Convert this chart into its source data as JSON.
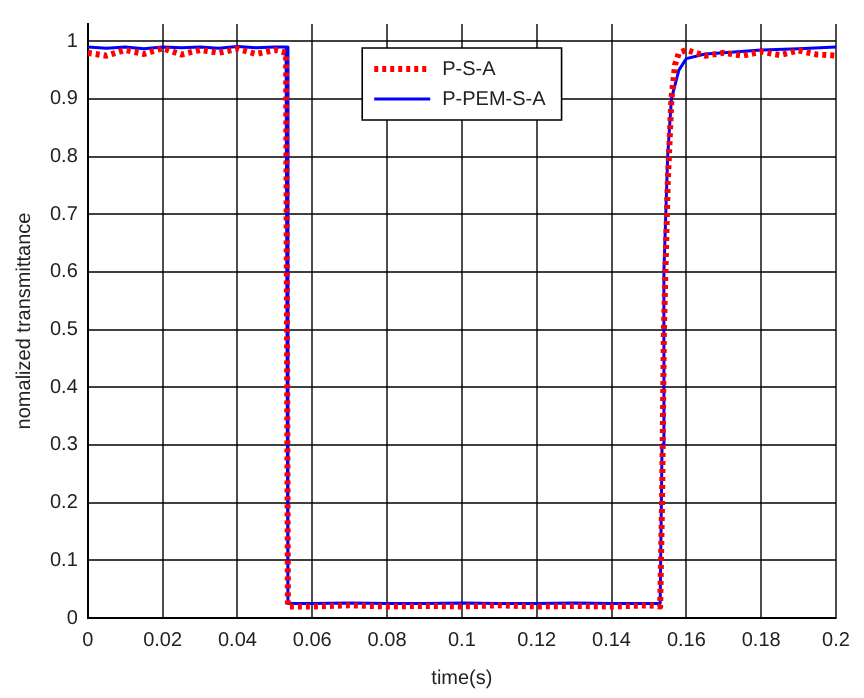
{
  "chart_data": {
    "type": "line",
    "xlabel": "time(s)",
    "ylabel": "nomalized transmittance",
    "xlim": [
      0,
      0.2
    ],
    "xticks": [
      0,
      0.02,
      0.04,
      0.06,
      0.08,
      0.1,
      0.12,
      0.14,
      0.16,
      0.18,
      0.2
    ],
    "ylim": [
      0,
      1.03
    ],
    "yticks": [
      0,
      0.1,
      0.2,
      0.3,
      0.4,
      0.5,
      0.6,
      0.7,
      0.8,
      0.9,
      1
    ],
    "grid": true,
    "legend": "top",
    "marker": "none",
    "series": [
      {
        "name": "P-S-A",
        "color": "#ff0000",
        "line_style": "dotted",
        "x": [
          0,
          0.005,
          0.01,
          0.015,
          0.02,
          0.025,
          0.03,
          0.035,
          0.04,
          0.045,
          0.05,
          0.053,
          0.0535,
          0.06,
          0.07,
          0.08,
          0.09,
          0.1,
          0.11,
          0.12,
          0.13,
          0.14,
          0.15,
          0.153,
          0.1535,
          0.154,
          0.155,
          0.156,
          0.157,
          0.158,
          0.16,
          0.165,
          0.17,
          0.175,
          0.18,
          0.185,
          0.19,
          0.195,
          0.2
        ],
        "values": [
          0.98,
          0.975,
          0.985,
          0.978,
          0.988,
          0.977,
          0.985,
          0.98,
          0.987,
          0.978,
          0.985,
          0.98,
          0.02,
          0.02,
          0.022,
          0.02,
          0.021,
          0.02,
          0.022,
          0.02,
          0.021,
          0.02,
          0.022,
          0.02,
          0.2,
          0.5,
          0.75,
          0.9,
          0.96,
          0.98,
          0.985,
          0.975,
          0.98,
          0.975,
          0.982,
          0.976,
          0.984,
          0.977,
          0.975
        ]
      },
      {
        "name": "P-PEM-S-A",
        "color": "#0000ff",
        "line_style": "solid",
        "x": [
          0,
          0.005,
          0.01,
          0.015,
          0.02,
          0.025,
          0.03,
          0.035,
          0.04,
          0.045,
          0.05,
          0.053,
          0.0535,
          0.06,
          0.07,
          0.08,
          0.09,
          0.1,
          0.11,
          0.12,
          0.13,
          0.14,
          0.15,
          0.153,
          0.1535,
          0.154,
          0.155,
          0.156,
          0.158,
          0.16,
          0.165,
          0.17,
          0.18,
          0.19,
          0.2
        ],
        "values": [
          0.99,
          0.988,
          0.99,
          0.987,
          0.99,
          0.989,
          0.99,
          0.988,
          0.991,
          0.989,
          0.99,
          0.99,
          0.025,
          0.025,
          0.026,
          0.025,
          0.025,
          0.026,
          0.025,
          0.025,
          0.026,
          0.025,
          0.025,
          0.025,
          0.3,
          0.6,
          0.8,
          0.9,
          0.95,
          0.97,
          0.978,
          0.98,
          0.985,
          0.987,
          0.99
        ]
      }
    ]
  }
}
